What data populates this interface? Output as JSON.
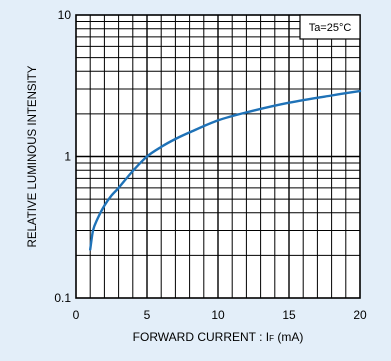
{
  "chart_data": {
    "type": "line",
    "title": "",
    "xlabel": "FORWARD  CURRENT : I",
    "xlabel_sub": "F",
    "xlabel_unit": " (mA)",
    "ylabel": "RELATIVE  LUMINOUS  INTENSITY",
    "annotation": "Ta=25°C",
    "xlim": [
      0,
      20
    ],
    "ylim": [
      0.1,
      10
    ],
    "y_scale": "log",
    "grid": true,
    "x_ticks": [
      {
        "value": 0,
        "label": "0"
      },
      {
        "value": 5,
        "label": "5"
      },
      {
        "value": 10,
        "label": "10"
      },
      {
        "value": 15,
        "label": "15"
      },
      {
        "value": 20,
        "label": "20"
      }
    ],
    "y_ticks": [
      {
        "value": 0.1,
        "label": "0.1"
      },
      {
        "value": 1,
        "label": "1"
      },
      {
        "value": 10,
        "label": "10"
      }
    ],
    "series": [
      {
        "x": [
          1,
          1.2,
          1.5,
          2,
          2.5,
          3,
          4,
          5,
          6,
          7,
          8,
          10,
          12,
          15,
          18,
          20
        ],
        "y": [
          0.22,
          0.3,
          0.36,
          0.45,
          0.53,
          0.6,
          0.79,
          1.0,
          1.17,
          1.33,
          1.48,
          1.8,
          2.05,
          2.4,
          2.7,
          2.9
        ]
      }
    ],
    "colors": {
      "background": "#e3eef9",
      "plot_bg": "#ffffff",
      "grid": "#000000",
      "line": "#1f72b7"
    }
  }
}
